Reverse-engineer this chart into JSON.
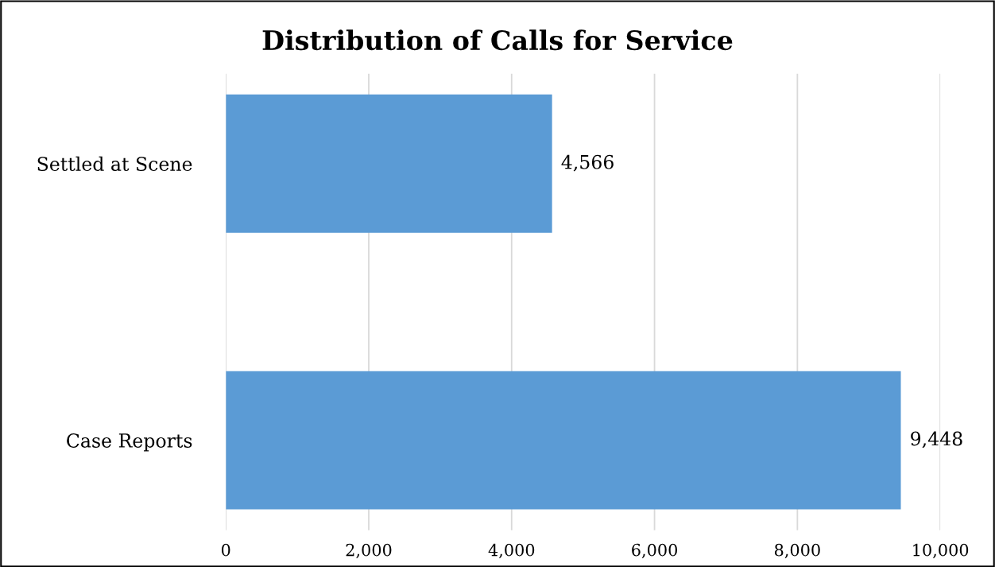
{
  "chart_data": {
    "type": "bar",
    "orientation": "horizontal",
    "title": "Distribution of Calls for Service",
    "categories": [
      "Settled at Scene",
      "Case Reports"
    ],
    "values": [
      4566,
      9448
    ],
    "color": "#5b9bd5",
    "value_labels": [
      "4,566",
      "9,448"
    ],
    "xlim": [
      0,
      10000
    ],
    "xticks": [
      {
        "value": 0,
        "label": "0"
      },
      {
        "value": 2000,
        "label": "2,000"
      },
      {
        "value": 4000,
        "label": "4,000"
      },
      {
        "value": 6000,
        "label": "6,000"
      },
      {
        "value": 8000,
        "label": "8,000"
      },
      {
        "value": 10000,
        "label": "10,000"
      }
    ],
    "grid": "x"
  }
}
